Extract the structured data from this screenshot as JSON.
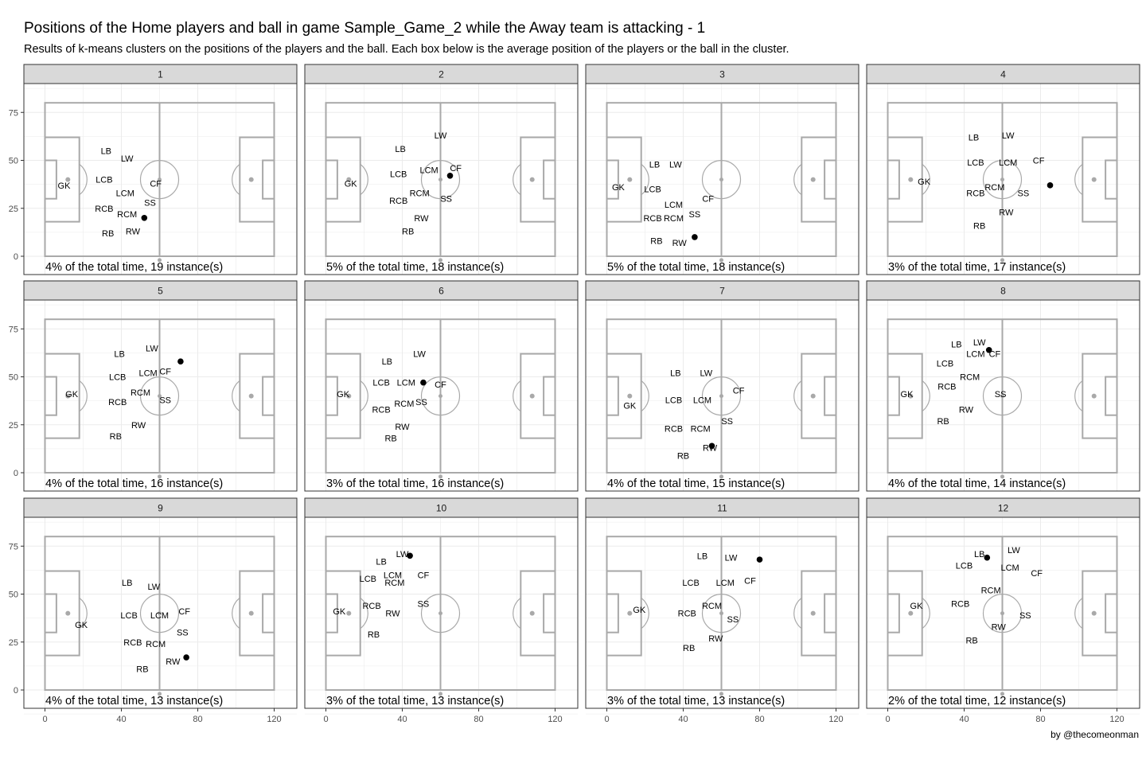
{
  "title": "Positions of the Home players and ball in game Sample_Game_2 while the Away team is attacking - 1",
  "subtitle": "Results of k-means clusters on the positions of the players and the ball. Each box below is the average position of the players or the ball in the cluster.",
  "caption": "by @thecomeonman",
  "colors": {
    "strip": "#d9d9d9",
    "pitch_lines": "#a9a9a9",
    "grid": "#ebebeb",
    "ball": "#000000",
    "panel_border": "#333333"
  },
  "chart_data": {
    "type": "scatter",
    "facets": "wrap, 3 rows x 4 columns",
    "xlim": [
      0,
      120
    ],
    "ylim": [
      0,
      80
    ],
    "x_ticks": [
      0,
      40,
      80,
      120
    ],
    "y_ticks": [
      0,
      25,
      50,
      75
    ],
    "pitch": {
      "length": 120,
      "width": 80
    },
    "panels": [
      {
        "label": "1",
        "note": "4% of the total time, 19 instance(s)",
        "ball": [
          52,
          20
        ],
        "players": [
          [
            "GK",
            10,
            37
          ],
          [
            "LB",
            32,
            55
          ],
          [
            "LW",
            43,
            51
          ],
          [
            "LCB",
            31,
            40
          ],
          [
            "LCM",
            42,
            33
          ],
          [
            "CF",
            58,
            38
          ],
          [
            "SS",
            55,
            28
          ],
          [
            "RCB",
            31,
            25
          ],
          [
            "RCM",
            43,
            22
          ],
          [
            "RB",
            33,
            12
          ],
          [
            "RW",
            46,
            13
          ]
        ]
      },
      {
        "label": "2",
        "note": "5% of the total time, 18 instance(s)",
        "ball": [
          65,
          42
        ],
        "players": [
          [
            "GK",
            13,
            38
          ],
          [
            "LB",
            39,
            56
          ],
          [
            "LW",
            60,
            63
          ],
          [
            "LCB",
            38,
            43
          ],
          [
            "LCM",
            54,
            45
          ],
          [
            "CF",
            68,
            46
          ],
          [
            "SS",
            63,
            30
          ],
          [
            "RCB",
            38,
            29
          ],
          [
            "RCM",
            49,
            33
          ],
          [
            "RW",
            50,
            20
          ],
          [
            "RB",
            43,
            13
          ]
        ]
      },
      {
        "label": "3",
        "note": "5% of the total time, 18 instance(s)",
        "ball": [
          46,
          10
        ],
        "players": [
          [
            "GK",
            6,
            36
          ],
          [
            "LB",
            25,
            48
          ],
          [
            "LW",
            36,
            48
          ],
          [
            "LCB",
            24,
            35
          ],
          [
            "LCM",
            35,
            27
          ],
          [
            "CF",
            53,
            30
          ],
          [
            "SS",
            46,
            22
          ],
          [
            "RCB",
            24,
            20
          ],
          [
            "RCM",
            35,
            20
          ],
          [
            "RB",
            26,
            8
          ],
          [
            "RW",
            38,
            7
          ]
        ]
      },
      {
        "label": "4",
        "note": "3% of the total time, 17 instance(s)",
        "ball": [
          85,
          37
        ],
        "players": [
          [
            "GK",
            19,
            39
          ],
          [
            "LB",
            45,
            62
          ],
          [
            "LW",
            63,
            63
          ],
          [
            "LCB",
            46,
            49
          ],
          [
            "LCM",
            63,
            49
          ],
          [
            "CF",
            79,
            50
          ],
          [
            "RCM",
            56,
            36
          ],
          [
            "SS",
            71,
            33
          ],
          [
            "RCB",
            46,
            33
          ],
          [
            "RW",
            62,
            23
          ],
          [
            "RB",
            48,
            16
          ]
        ]
      },
      {
        "label": "5",
        "note": "4% of the total time, 16 instance(s)",
        "ball": [
          71,
          58
        ],
        "players": [
          [
            "GK",
            14,
            41
          ],
          [
            "LB",
            39,
            62
          ],
          [
            "LW",
            56,
            65
          ],
          [
            "LCB",
            38,
            50
          ],
          [
            "LCM",
            54,
            52
          ],
          [
            "CF",
            63,
            53
          ],
          [
            "RCM",
            50,
            42
          ],
          [
            "SS",
            63,
            38
          ],
          [
            "RCB",
            38,
            37
          ],
          [
            "RW",
            49,
            25
          ],
          [
            "RB",
            37,
            19
          ]
        ]
      },
      {
        "label": "6",
        "note": "3% of the total time, 16 instance(s)",
        "ball": [
          51,
          47
        ],
        "players": [
          [
            "GK",
            9,
            41
          ],
          [
            "LB",
            32,
            58
          ],
          [
            "LW",
            49,
            62
          ],
          [
            "LCB",
            29,
            47
          ],
          [
            "LCM",
            42,
            47
          ],
          [
            "CF",
            60,
            46
          ],
          [
            "RCM",
            41,
            36
          ],
          [
            "SS",
            50,
            37
          ],
          [
            "RCB",
            29,
            33
          ],
          [
            "RW",
            40,
            24
          ],
          [
            "RB",
            34,
            18
          ]
        ]
      },
      {
        "label": "7",
        "note": "4% of the total time, 15 instance(s)",
        "ball": [
          55,
          14
        ],
        "players": [
          [
            "GK",
            12,
            35
          ],
          [
            "LB",
            36,
            52
          ],
          [
            "LW",
            52,
            52
          ],
          [
            "LCB",
            35,
            38
          ],
          [
            "LCM",
            50,
            38
          ],
          [
            "CF",
            69,
            43
          ],
          [
            "SS",
            63,
            27
          ],
          [
            "RCB",
            35,
            23
          ],
          [
            "RCM",
            49,
            23
          ],
          [
            "RW",
            54,
            13
          ],
          [
            "RB",
            40,
            9
          ]
        ]
      },
      {
        "label": "8",
        "note": "4% of the total time, 14 instance(s)",
        "ball": [
          53,
          64
        ],
        "players": [
          [
            "GK",
            10,
            41
          ],
          [
            "LB",
            36,
            67
          ],
          [
            "LW",
            48,
            68
          ],
          [
            "LCM",
            46,
            62
          ],
          [
            "CF",
            56,
            62
          ],
          [
            "LCB",
            30,
            57
          ],
          [
            "RCM",
            43,
            50
          ],
          [
            "RCB",
            31,
            45
          ],
          [
            "SS",
            59,
            41
          ],
          [
            "RW",
            41,
            33
          ],
          [
            "RB",
            29,
            27
          ]
        ]
      },
      {
        "label": "9",
        "note": "4% of the total time, 13 instance(s)",
        "ball": [
          74,
          17
        ],
        "players": [
          [
            "GK",
            19,
            34
          ],
          [
            "LB",
            43,
            56
          ],
          [
            "LW",
            57,
            54
          ],
          [
            "LCB",
            44,
            39
          ],
          [
            "LCM",
            60,
            39
          ],
          [
            "CF",
            73,
            41
          ],
          [
            "SS",
            72,
            30
          ],
          [
            "RCB",
            46,
            25
          ],
          [
            "RCM",
            58,
            24
          ],
          [
            "RW",
            67,
            15
          ],
          [
            "RB",
            51,
            11
          ]
        ]
      },
      {
        "label": "10",
        "note": "3% of the total time, 13 instance(s)",
        "ball": [
          44,
          70
        ],
        "players": [
          [
            "LB",
            29,
            67
          ],
          [
            "LW",
            40,
            71
          ],
          [
            "LCB",
            22,
            58
          ],
          [
            "LCM",
            35,
            60
          ],
          [
            "CF",
            51,
            60
          ],
          [
            "RCM",
            36,
            56
          ],
          [
            "SS",
            51,
            45
          ],
          [
            "GK",
            7,
            41
          ],
          [
            "RCB",
            24,
            44
          ],
          [
            "RW",
            35,
            40
          ],
          [
            "RB",
            25,
            29
          ]
        ]
      },
      {
        "label": "11",
        "note": "3% of the total time, 13 instance(s)",
        "ball": [
          80,
          68
        ],
        "players": [
          [
            "LB",
            50,
            70
          ],
          [
            "LW",
            65,
            69
          ],
          [
            "LCB",
            44,
            56
          ],
          [
            "LCM",
            62,
            56
          ],
          [
            "CF",
            75,
            57
          ],
          [
            "GK",
            17,
            42
          ],
          [
            "RCM",
            55,
            44
          ],
          [
            "RCB",
            42,
            40
          ],
          [
            "SS",
            66,
            37
          ],
          [
            "RW",
            57,
            27
          ],
          [
            "RB",
            43,
            22
          ]
        ]
      },
      {
        "label": "12",
        "note": "2% of the total time, 12 instance(s)",
        "ball": [
          52,
          69
        ],
        "players": [
          [
            "LB",
            48,
            71
          ],
          [
            "LW",
            66,
            73
          ],
          [
            "LCB",
            40,
            65
          ],
          [
            "LCM",
            64,
            64
          ],
          [
            "CF",
            78,
            61
          ],
          [
            "RCM",
            54,
            52
          ],
          [
            "GK",
            15,
            44
          ],
          [
            "RCB",
            38,
            45
          ],
          [
            "SS",
            72,
            39
          ],
          [
            "RW",
            58,
            33
          ],
          [
            "RB",
            44,
            26
          ]
        ]
      }
    ]
  }
}
